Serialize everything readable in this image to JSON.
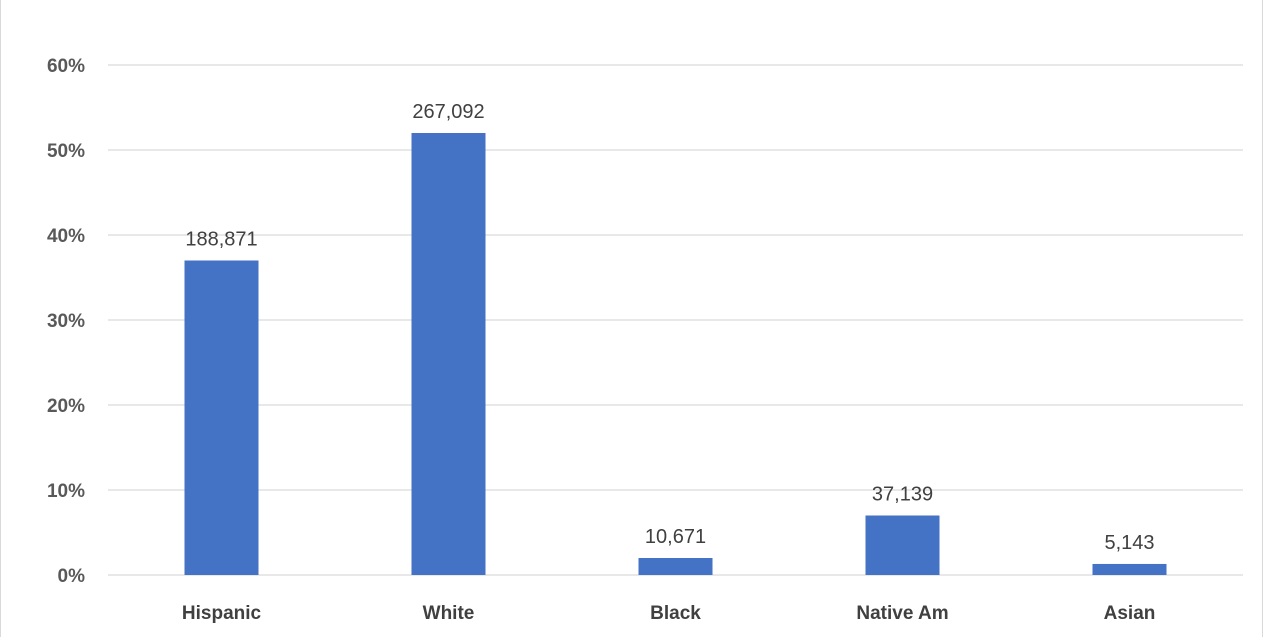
{
  "chart_data": {
    "type": "bar",
    "categories": [
      "Hispanic",
      "White",
      "Black",
      "Native Am",
      "Asian"
    ],
    "values": [
      37.0,
      52.0,
      2.0,
      7.0,
      1.3
    ],
    "data_labels": [
      "188,871",
      "267,092",
      "10,671",
      "37,139",
      "5,143"
    ],
    "ylim": [
      0,
      60
    ],
    "yticks": [
      0,
      10,
      20,
      30,
      40,
      50,
      60
    ],
    "ytick_labels": [
      "0%",
      "10%",
      "20%",
      "30%",
      "40%",
      "50%",
      "60%"
    ],
    "grid": true,
    "legend": "none",
    "bar_color": "#4472c4",
    "grid_color": "#d9d9d9"
  }
}
